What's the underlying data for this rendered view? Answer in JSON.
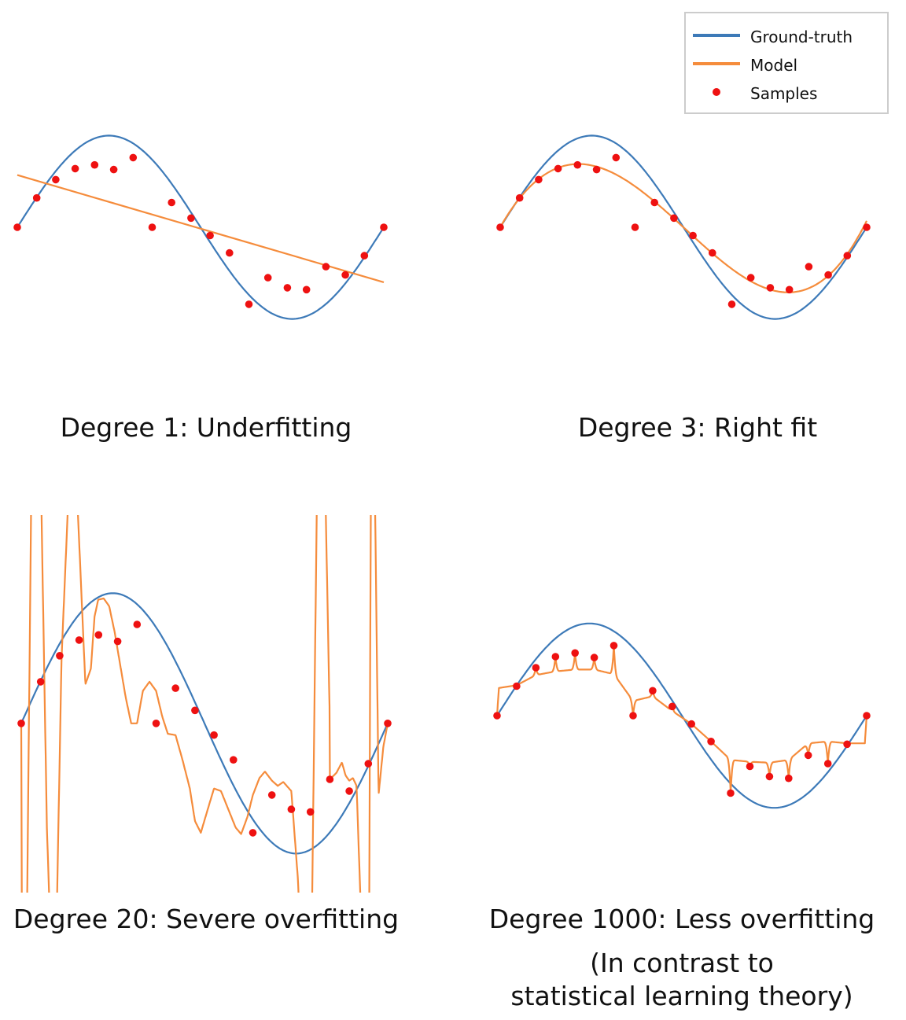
{
  "colors": {
    "ground_truth": "#3d7ab8",
    "model": "#f58c3c",
    "samples": "#ee1111"
  },
  "legend": {
    "placement": "top-right",
    "entries": [
      "Ground-truth",
      "Model",
      "Samples"
    ]
  },
  "chart_data": [
    {
      "type": "line",
      "title": "Degree 1: Underfitting",
      "subtitle": "",
      "degree": 1,
      "xlim": [
        0,
        1
      ],
      "ylim": [
        -1.45,
        1.45
      ],
      "ground_truth": "sin(2*pi*x)",
      "samples": {
        "x": [
          0.0,
          0.053,
          0.105,
          0.158,
          0.211,
          0.263,
          0.316,
          0.368,
          0.421,
          0.474,
          0.526,
          0.579,
          0.632,
          0.684,
          0.737,
          0.789,
          0.842,
          0.895,
          0.947,
          1.0
        ],
        "y": [
          0.0,
          0.32,
          0.52,
          0.64,
          0.68,
          0.63,
          0.76,
          0.0,
          0.27,
          0.1,
          -0.09,
          -0.28,
          -0.84,
          -0.55,
          -0.66,
          -0.68,
          -0.43,
          -0.52,
          -0.31,
          0.0
        ]
      },
      "model": {
        "kind": "linear",
        "y_at_xmin": 0.57,
        "y_at_xmax": -0.6
      }
    },
    {
      "type": "line",
      "title": "Degree 3: Right fit",
      "subtitle": "",
      "degree": 3,
      "xlim": [
        0,
        1
      ],
      "ylim": [
        -1.45,
        1.45
      ],
      "ground_truth": "sin(2*pi*x)",
      "samples": {
        "x": [
          0.0,
          0.053,
          0.105,
          0.158,
          0.211,
          0.263,
          0.316,
          0.368,
          0.421,
          0.474,
          0.526,
          0.579,
          0.632,
          0.684,
          0.737,
          0.789,
          0.842,
          0.895,
          0.947,
          1.0
        ],
        "y": [
          0.0,
          0.32,
          0.52,
          0.64,
          0.68,
          0.63,
          0.76,
          0.0,
          0.27,
          0.1,
          -0.09,
          -0.28,
          -0.84,
          -0.55,
          -0.66,
          -0.68,
          -0.43,
          -0.52,
          -0.31,
          0.0
        ]
      },
      "model": {
        "kind": "cubic",
        "x": [
          0.0,
          0.211,
          0.5,
          0.789,
          1.0
        ],
        "y": [
          0.0,
          0.69,
          0.0,
          -0.71,
          0.07
        ]
      }
    },
    {
      "type": "line",
      "title": "Degree 20: Severe overfitting",
      "subtitle": "",
      "degree": 20,
      "xlim": [
        0,
        1
      ],
      "ylim": [
        -1.3,
        1.6
      ],
      "ground_truth": "sin(2*pi*x)",
      "samples": {
        "x": [
          0.0,
          0.053,
          0.105,
          0.158,
          0.211,
          0.263,
          0.316,
          0.368,
          0.421,
          0.474,
          0.526,
          0.579,
          0.632,
          0.684,
          0.737,
          0.789,
          0.842,
          0.895,
          0.947,
          1.0
        ],
        "y": [
          0.0,
          0.32,
          0.52,
          0.64,
          0.68,
          0.63,
          0.76,
          0.0,
          0.27,
          0.1,
          -0.09,
          -0.28,
          -0.84,
          -0.55,
          -0.66,
          -0.68,
          -0.43,
          -0.52,
          -0.31,
          0.0
        ]
      },
      "model": {
        "kind": "polyline",
        "x": [
          0.0,
          0.003,
          0.012,
          0.03,
          0.05,
          0.07,
          0.09,
          0.11,
          0.14,
          0.158,
          0.175,
          0.19,
          0.2,
          0.21,
          0.225,
          0.24,
          0.255,
          0.27,
          0.285,
          0.3,
          0.316,
          0.332,
          0.35,
          0.368,
          0.385,
          0.4,
          0.421,
          0.44,
          0.46,
          0.474,
          0.49,
          0.51,
          0.526,
          0.545,
          0.565,
          0.585,
          0.6,
          0.617,
          0.632,
          0.65,
          0.665,
          0.684,
          0.7,
          0.715,
          0.737,
          0.755,
          0.775,
          0.789,
          0.81,
          0.825,
          0.842,
          0.86,
          0.875,
          0.885,
          0.895,
          0.905,
          0.915,
          0.925,
          0.94,
          0.947,
          0.955,
          0.962,
          0.975,
          0.988,
          1.0
        ],
        "y": [
          0.0,
          -2.5,
          -2.5,
          2.5,
          2.5,
          -0.8,
          -2.5,
          0.5,
          2.5,
          1.4,
          0.3,
          0.42,
          0.82,
          0.95,
          0.96,
          0.9,
          0.7,
          0.45,
          0.2,
          0.0,
          0.0,
          0.25,
          0.32,
          0.25,
          0.05,
          -0.08,
          -0.09,
          -0.28,
          -0.5,
          -0.75,
          -0.84,
          -0.65,
          -0.5,
          -0.52,
          -0.66,
          -0.8,
          -0.85,
          -0.72,
          -0.55,
          -0.42,
          -0.37,
          -0.44,
          -0.48,
          -0.45,
          -0.52,
          -1.2,
          -2.5,
          -2.5,
          2.5,
          2.5,
          0.0,
          0.0,
          0.0,
          0.0,
          0.0,
          0.0,
          0.0,
          0.0,
          0.0,
          0.0,
          0.0,
          0.0,
          0.0,
          0.0,
          0.0
        ]
      }
    },
    {
      "type": "line",
      "title": "Degree 1000: Less overfitting",
      "subtitle": "(In contrast to\nstatistical learning theory)",
      "subtitle_lines": [
        "(In contrast to",
        "statistical learning theory)"
      ],
      "degree": 1000,
      "xlim": [
        0,
        1
      ],
      "ylim": [
        -1.45,
        1.45
      ],
      "ground_truth": "sin(2*pi*x)",
      "samples": {
        "x": [
          0.0,
          0.053,
          0.105,
          0.158,
          0.211,
          0.263,
          0.316,
          0.368,
          0.421,
          0.474,
          0.526,
          0.579,
          0.632,
          0.684,
          0.737,
          0.789,
          0.842,
          0.895,
          0.947,
          1.0
        ],
        "y": [
          0.0,
          0.32,
          0.52,
          0.64,
          0.68,
          0.63,
          0.76,
          0.0,
          0.27,
          0.1,
          -0.09,
          -0.28,
          -0.84,
          -0.55,
          -0.66,
          -0.68,
          -0.43,
          -0.52,
          -0.31,
          0.0
        ]
      },
      "model": {
        "kind": "spiky",
        "base_x": [
          0.0,
          0.005,
          0.053,
          0.105,
          0.158,
          0.211,
          0.263,
          0.316,
          0.368,
          0.421,
          0.474,
          0.526,
          0.579,
          0.632,
          0.684,
          0.737,
          0.789,
          0.842,
          0.895,
          0.947,
          0.995,
          1.0
        ],
        "base_y": [
          0.0,
          0.3,
          0.33,
          0.44,
          0.48,
          0.5,
          0.5,
          0.45,
          0.16,
          0.21,
          0.05,
          -0.09,
          -0.28,
          -0.48,
          -0.5,
          -0.51,
          -0.48,
          -0.3,
          -0.28,
          -0.3,
          -0.3,
          0.0
        ]
      }
    }
  ]
}
